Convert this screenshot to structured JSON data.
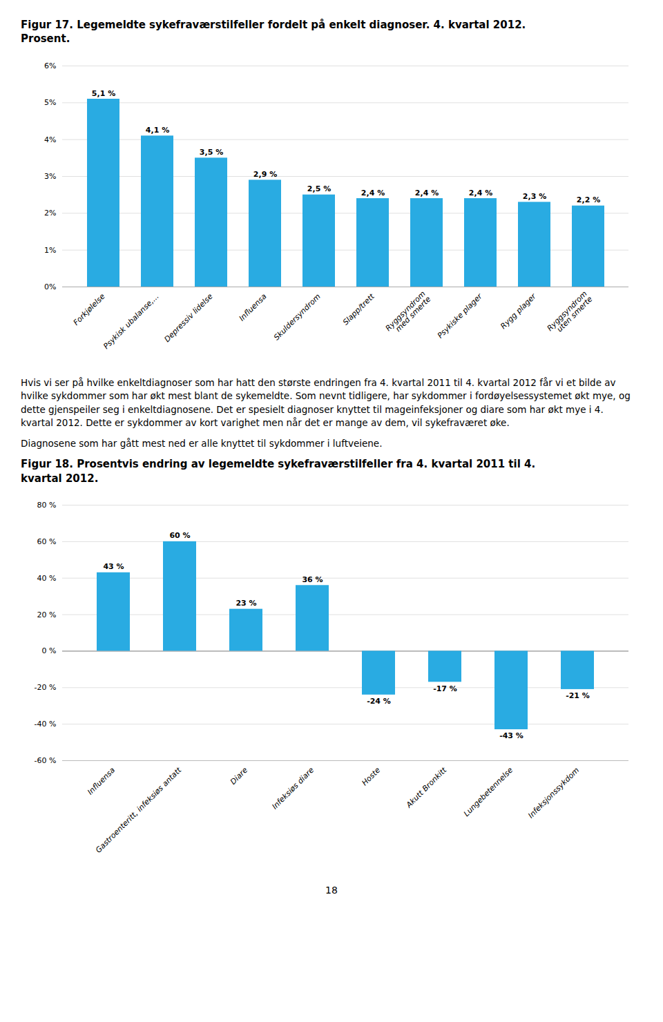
{
  "chart_data": [
    {
      "type": "bar",
      "title": "Figur 17. Legemeldte sykefraværstilfeller fordelt på enkelt diagnoser. 4. kvartal 2012.\nProsent.",
      "categories": [
        "Forkjølelse",
        "Psykisk ubalanse,...",
        "Depressiv lidelse",
        "Influensa",
        "Skuldersyndrom",
        "Slapp/trett",
        "Ryggsyndrom\nmed smerte",
        "Psykiske plager",
        "Rygg plager",
        "Ryggsyndrom\nuten smerte"
      ],
      "values": [
        5.1,
        4.1,
        3.5,
        2.9,
        2.5,
        2.4,
        2.4,
        2.4,
        2.3,
        2.2
      ],
      "value_labels": [
        "5,1 %",
        "4,1 %",
        "3,5 %",
        "2,9 %",
        "2,5 %",
        "2,4 %",
        "2,4 %",
        "2,4 %",
        "2,3 %",
        "2,2 %"
      ],
      "data_labels": true,
      "color": "#29ABE2",
      "ylim": [
        0,
        6
      ],
      "yticks": [
        {
          "value": 0,
          "label": "0%"
        },
        {
          "value": 1,
          "label": "1%"
        },
        {
          "value": 2,
          "label": "2%"
        },
        {
          "value": 3,
          "label": "3%"
        },
        {
          "value": 4,
          "label": "4%"
        },
        {
          "value": 5,
          "label": "5%"
        },
        {
          "value": 6,
          "label": "6%"
        }
      ],
      "grid": true
    },
    {
      "type": "bar",
      "title": "Figur 18. Prosentvis endring av legemeldte sykefraværstilfeller fra 4. kvartal 2011 til 4.\nkvartal 2012.",
      "categories": [
        "Influensa",
        "Gastroenteritt, infeksiøs antatt",
        "Diare",
        "Infeksiøs diare",
        "Hoste",
        "Akutt Bronkitt",
        "Lungebetennelse",
        "Infeksjonssykdom"
      ],
      "values": [
        43,
        60,
        23,
        36,
        -24,
        -17,
        -43,
        -21
      ],
      "value_labels": [
        "43 %",
        "60 %",
        "23 %",
        "36 %",
        "-24 %",
        "-17 %",
        "-43 %",
        "-21 %"
      ],
      "data_labels": true,
      "color": "#29ABE2",
      "ylim": [
        -60,
        80
      ],
      "yticks": [
        {
          "value": -60,
          "label": "-60 %"
        },
        {
          "value": -40,
          "label": "-40 %"
        },
        {
          "value": -20,
          "label": "-20 %"
        },
        {
          "value": 0,
          "label": "0 %"
        },
        {
          "value": 20,
          "label": "20 %"
        },
        {
          "value": 40,
          "label": "40 %"
        },
        {
          "value": 60,
          "label": "60 %"
        },
        {
          "value": 80,
          "label": "80 %"
        }
      ],
      "grid": true
    }
  ],
  "body_text": [
    "Hvis vi ser på hvilke enkeltdiagnoser som har hatt den største endringen fra 4. kvartal 2011 til 4. kvartal 2012 får vi et bilde av hvilke sykdommer som har økt mest blant de sykemeldte. Som nevnt tidligere, har sykdommer i fordøyelsessystemet økt mye, og dette gjenspeiler seg i enkeltdiagnosene. Det er spesielt diagnoser knyttet til mageinfeksjoner og diare som har økt mye i 4. kvartal 2012. Dette er sykdommer av kort varighet men når det er mange av dem, vil sykefraværet øke.",
    "Diagnosene som har gått mest ned er alle knyttet til sykdommer i luftveiene."
  ],
  "page_number": "18"
}
